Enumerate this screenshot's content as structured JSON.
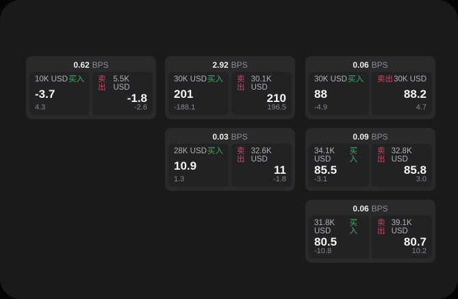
{
  "labels": {
    "buy": "买入",
    "sell": "卖出",
    "bps_unit": "BPS"
  },
  "colors": {
    "buy_green": "#3fae63",
    "sell_red": "#c8495f",
    "window_bg": "#1a1a1c",
    "card_bg": "#2a2a2c",
    "panel_bg": "#222224"
  },
  "cards": [
    {
      "bps": "0.62",
      "buy": {
        "size": "10K USD",
        "value": "-3.7",
        "delta": "4.3"
      },
      "sell": {
        "size": "5.5K USD",
        "value": "-1.8",
        "delta": "-2.6"
      }
    },
    {
      "bps": "2.92",
      "buy": {
        "size": "30K USD",
        "value": "201",
        "delta": "-188.1"
      },
      "sell": {
        "size": "30.1K USD",
        "value": "210",
        "delta": "196.5"
      }
    },
    {
      "bps": "0.06",
      "buy": {
        "size": "30K USD",
        "value": "88",
        "delta": "-4.9"
      },
      "sell": {
        "size": "30K USD",
        "value": "88.2",
        "delta": "4.7"
      }
    },
    {
      "bps": "0.03",
      "buy": {
        "size": "28K USD",
        "value": "10.9",
        "delta": "1.3"
      },
      "sell": {
        "size": "32.6K USD",
        "value": "11",
        "delta": "-1.8"
      }
    },
    {
      "bps": "0.09",
      "buy": {
        "size": "34.1K USD",
        "value": "85.5",
        "delta": "-3.1"
      },
      "sell": {
        "size": "32.8K USD",
        "value": "85.8",
        "delta": "3.0"
      }
    },
    {
      "bps": "0.06",
      "buy": {
        "size": "31.8K USD",
        "value": "80.5",
        "delta": "-10.8"
      },
      "sell": {
        "size": "39.1K USD",
        "value": "80.7",
        "delta": "10.2"
      }
    }
  ]
}
